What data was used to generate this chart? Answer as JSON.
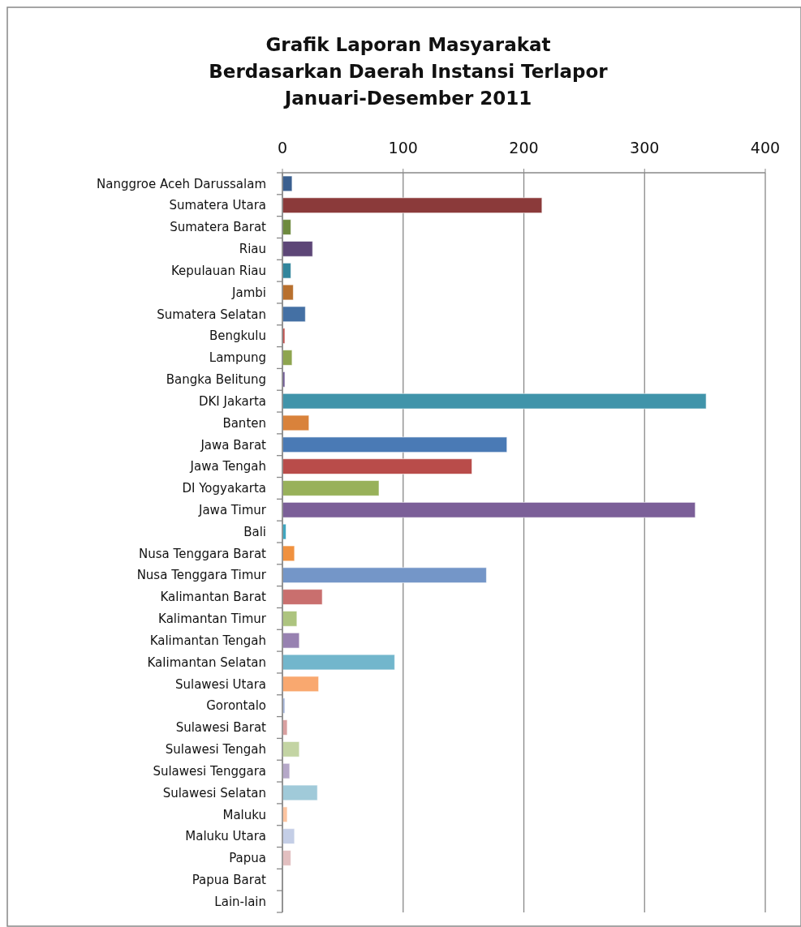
{
  "chart_data": {
    "type": "bar",
    "orientation": "horizontal",
    "title": "Grafik Laporan  Masyarakat\nBerdasarkan Daerah Instansi Terlapor\nJanuari-Desember 2011",
    "categories": [
      "Nanggroe Aceh Darussalam",
      "Sumatera Utara",
      "Sumatera Barat",
      "Riau",
      "Kepulauan Riau",
      "Jambi",
      "Sumatera Selatan",
      "Bengkulu",
      "Lampung",
      "Bangka Belitung",
      "DKI Jakarta",
      "Banten",
      "Jawa Barat",
      "Jawa Tengah",
      "DI Yogyakarta",
      "Jawa Timur",
      "Bali",
      "Nusa Tenggara Barat",
      "Nusa Tenggara Timur",
      "Kalimantan Barat",
      "Kalimantan Timur",
      "Kalimantan Tengah",
      "Kalimantan Selatan",
      "Sulawesi Utara",
      "Gorontalo",
      "Sulawesi Barat",
      "Sulawesi Tengah",
      "Sulawesi Tenggara",
      "Sulawesi Selatan",
      "Maluku",
      "Maluku Utara",
      "Papua",
      "Papua Barat",
      "Lain-lain"
    ],
    "values": [
      8,
      215,
      7,
      25,
      7,
      9,
      19,
      2,
      8,
      2,
      351,
      22,
      186,
      157,
      80,
      342,
      3,
      10,
      169,
      33,
      12,
      14,
      93,
      30,
      2,
      4,
      14,
      6,
      29,
      4,
      10,
      7,
      0,
      0
    ],
    "colors": [
      "#3a5f8f",
      "#8b3a3a",
      "#6e8a3e",
      "#5d4677",
      "#31859c",
      "#b8702e",
      "#4470a4",
      "#c0504d",
      "#8ea54f",
      "#6f5a95",
      "#4094aa",
      "#d9823b",
      "#4a7ab5",
      "#b94c4a",
      "#98b15a",
      "#7b5f98",
      "#3fa6c0",
      "#f0913f",
      "#7496c8",
      "#c96f6e",
      "#adc47f",
      "#9781b1",
      "#72b6cc",
      "#f9a86f",
      "#a5b5d9",
      "#d9a0a0",
      "#c3d4a3",
      "#b5a8c8",
      "#a0cad9",
      "#fcc4a0",
      "#c4cee6",
      "#e2bfc0",
      "#d0dcc0",
      "#d0c8dc"
    ],
    "xlim": [
      0,
      400
    ],
    "xticks": [
      0,
      100,
      200,
      300,
      400
    ],
    "grid": "x"
  }
}
